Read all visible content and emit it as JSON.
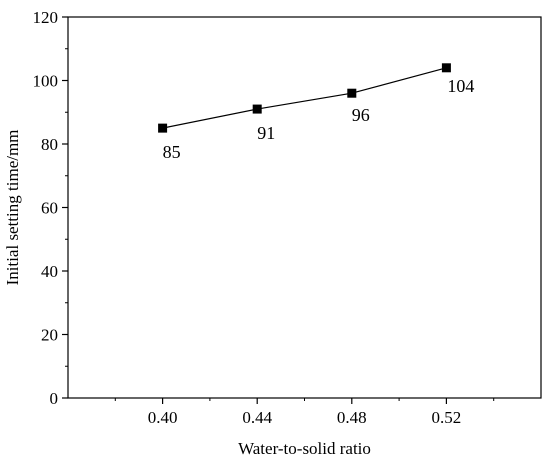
{
  "chart_data": {
    "type": "line",
    "title": "",
    "xlabel": "Water-to-solid ratio",
    "ylabel": "Initial setting time/mm",
    "x": [
      0.4,
      0.44,
      0.48,
      0.52
    ],
    "series": [
      {
        "values": [
          85,
          91,
          96,
          104
        ],
        "labels": [
          "85",
          "91",
          "96",
          "104"
        ]
      }
    ],
    "xlim": [
      0.36,
      0.56
    ],
    "ylim": [
      0,
      120
    ],
    "xticks": [
      "0.40",
      "0.44",
      "0.48",
      "0.52"
    ],
    "yticks": [
      "0",
      "20",
      "40",
      "60",
      "80",
      "100",
      "120"
    ],
    "grid": false,
    "legend": "none",
    "marker": "square",
    "line_color": "#000000"
  }
}
